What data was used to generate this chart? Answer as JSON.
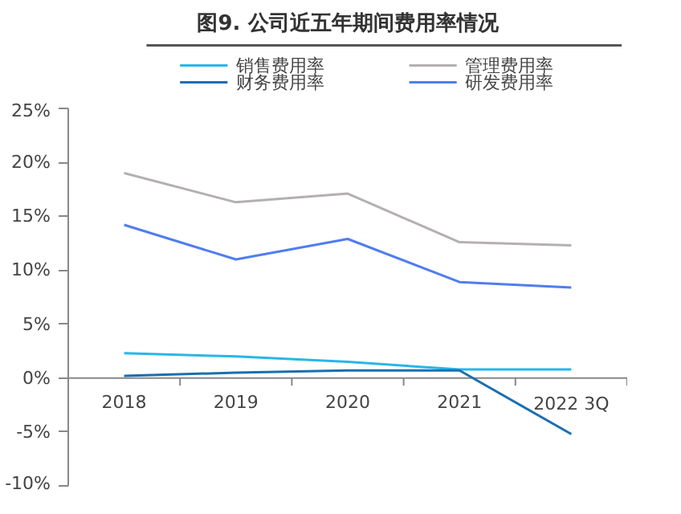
{
  "chart_data": {
    "type": "line",
    "title": "图9. 公司近五年期间费用率情况",
    "categories": [
      "2018",
      "2019",
      "2020",
      "2021",
      "2022 3Q"
    ],
    "series": [
      {
        "name": "销售费用率",
        "color": "#29b6e8",
        "values": [
          2.3,
          2.0,
          1.5,
          0.8,
          0.8
        ]
      },
      {
        "name": "管理费用率",
        "color": "#b4b0b0",
        "values": [
          19.0,
          16.3,
          17.1,
          12.6,
          12.3
        ]
      },
      {
        "name": "财务费用率",
        "color": "#1a6fb0",
        "values": [
          0.2,
          0.5,
          0.7,
          0.7,
          -5.2
        ]
      },
      {
        "name": "研发费用率",
        "color": "#4f7df0",
        "values": [
          14.2,
          11.0,
          12.9,
          8.9,
          8.4
        ]
      }
    ],
    "ylim": [
      -10,
      25
    ],
    "yticks": [
      {
        "value": -10,
        "label": "-10%"
      },
      {
        "value": -5,
        "label": "-5%"
      },
      {
        "value": 0,
        "label": "0%"
      },
      {
        "value": 5,
        "label": "5%"
      },
      {
        "value": 10,
        "label": "10%"
      },
      {
        "value": 15,
        "label": "15%"
      },
      {
        "value": 20,
        "label": "20%"
      },
      {
        "value": 25,
        "label": "25%"
      }
    ],
    "grid": false,
    "legend": "top",
    "marker": "none",
    "line_style": "solid"
  }
}
